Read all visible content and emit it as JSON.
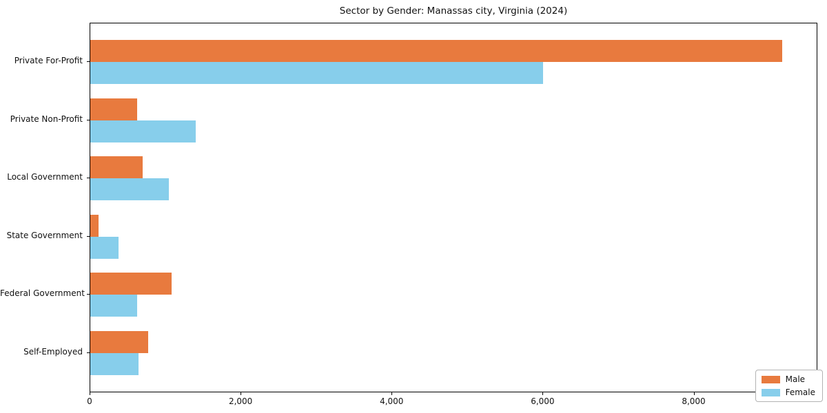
{
  "chart_data": {
    "type": "bar",
    "orientation": "horizontal",
    "title": "Sector by Gender: Manassas city, Virginia (2024)",
    "categories": [
      "Private For-Profit",
      "Private Non-Profit",
      "Local Government",
      "State Government",
      "Federal Government",
      "Self-Employed"
    ],
    "series": [
      {
        "name": "Male",
        "color": "#e87a3e",
        "values": [
          9160,
          620,
          690,
          110,
          1080,
          770
        ]
      },
      {
        "name": "Female",
        "color": "#87ceeb",
        "values": [
          6000,
          1400,
          1040,
          370,
          620,
          640
        ]
      }
    ],
    "x_ticks": [
      {
        "value": 0,
        "label": "0"
      },
      {
        "value": 2000,
        "label": "2,000"
      },
      {
        "value": 4000,
        "label": "4,000"
      },
      {
        "value": 6000,
        "label": "6,000"
      },
      {
        "value": 8000,
        "label": "8,000"
      }
    ],
    "xlim": [
      0,
      9620
    ],
    "xlabel": "",
    "ylabel": "",
    "grid": false,
    "legend_position": "lower right",
    "background_color": "#ffffff",
    "axis_color": "#000000"
  }
}
